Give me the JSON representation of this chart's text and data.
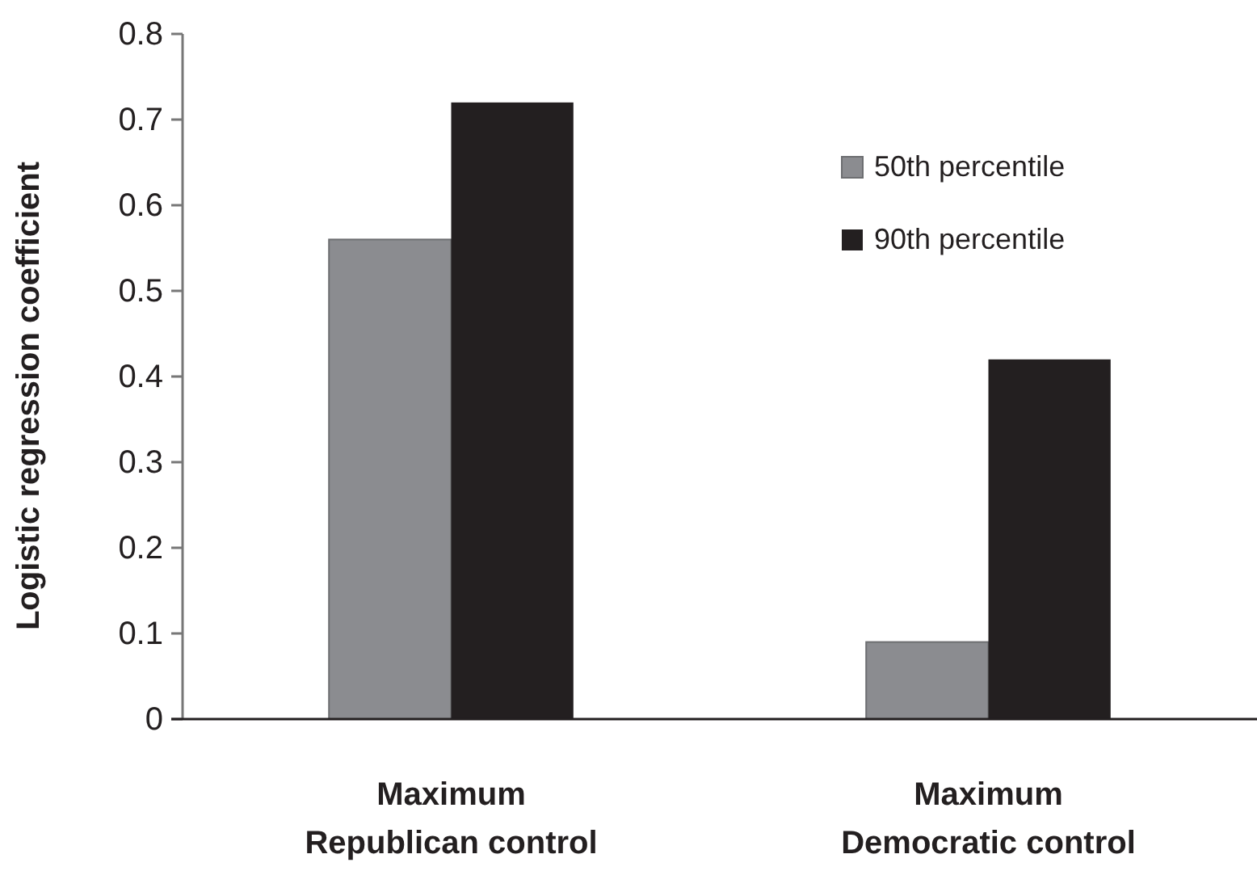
{
  "chart_data": {
    "type": "bar",
    "ylabel": "Logistic regression coefficient",
    "categories": [
      "Maximum Republican control",
      "Maximum Democratic control"
    ],
    "series": [
      {
        "name": "50th percentile",
        "color": "#8b8c90",
        "values": [
          0.56,
          0.09
        ]
      },
      {
        "name": "90th percentile",
        "color": "#231f20",
        "values": [
          0.72,
          0.42
        ]
      }
    ],
    "ylim": [
      0,
      0.8
    ],
    "yticks": [
      0,
      {
        "value": 0.1,
        "label": "0.1"
      },
      {
        "value": 0.2,
        "label": "0.2"
      },
      {
        "value": 0.3,
        "label": "0.3"
      },
      {
        "value": 0.4,
        "label": "0.4"
      },
      {
        "value": 0.5,
        "label": "0.5"
      },
      {
        "value": 0.6,
        "label": "0.6"
      },
      {
        "value": 0.7,
        "label": "0.7"
      },
      {
        "value": 0.8,
        "label": "0.8"
      }
    ],
    "grid": false,
    "legend": "top right"
  }
}
